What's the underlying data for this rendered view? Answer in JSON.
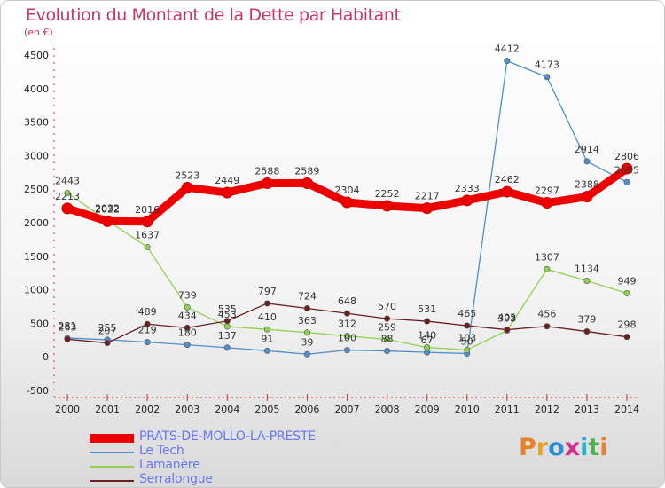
{
  "title": "Evolution du Montant de la Dette par Habitant",
  "unit_label": "(en €)",
  "logo": {
    "text": "Proxiti",
    "colors": [
      "#e8812b",
      "#e8a32b",
      "#2b8fd6",
      "#d62b8f",
      "#2bb0d6",
      "#4caf50",
      "#e8812b"
    ]
  },
  "chart_data": {
    "type": "line",
    "title": "Evolution du Montant de la Dette par Habitant",
    "ylabel": "(en €)",
    "xlabel": "",
    "x": [
      "2000",
      "2001",
      "2002",
      "2003",
      "2004",
      "2005",
      "2006",
      "2007",
      "2008",
      "2009",
      "2010",
      "2011",
      "2012",
      "2013",
      "2014"
    ],
    "ylim": [
      -500,
      4500
    ],
    "yticks": [
      "-500",
      "0",
      "500",
      "1000",
      "1500",
      "2000",
      "2500",
      "3000",
      "3500",
      "4000",
      "4500"
    ],
    "grid": false,
    "legend_position": "bottom-left",
    "series": [
      {
        "name": "PRATS-DE-MOLLO-LA-PRESTE",
        "color": "#ee0000",
        "values": [
          2213,
          2022,
          2016,
          2523,
          2449,
          2588,
          2589,
          2304,
          2252,
          2217,
          2333,
          2462,
          2297,
          2388,
          2806
        ],
        "labels": [
          "2213",
          "2022",
          "2016",
          "2523",
          "2449",
          "2588",
          "2589",
          "2304",
          "2252",
          "2217",
          "2333",
          "2462",
          "2297",
          "2388",
          "2806"
        ]
      },
      {
        "name": "Le Tech",
        "color": "#4d8fcc",
        "values": [
          281,
          255,
          219,
          180,
          137,
          91,
          39,
          100,
          88,
          67,
          50,
          4412,
          4173,
          2914,
          2605
        ],
        "labels": [
          "281",
          "255",
          "219",
          "180",
          "137",
          "91",
          "39",
          "100",
          "88",
          "67",
          "50",
          "4412",
          "4173",
          "2914",
          "2605"
        ]
      },
      {
        "name": "Lamanère",
        "color": "#8fd14f",
        "values": [
          2443,
          2032,
          1637,
          739,
          453,
          410,
          363,
          312,
          259,
          140,
          103,
          393,
          1307,
          1134,
          949
        ],
        "labels": [
          "2443",
          "2032",
          "1637",
          "739",
          "453",
          "410",
          "363",
          "312",
          "259",
          "140",
          "103",
          "393",
          "1307",
          "1134",
          "949"
        ]
      },
      {
        "name": "Serralongue",
        "color": "#6b2020",
        "values": [
          263,
          207,
          489,
          434,
          535,
          797,
          724,
          648,
          570,
          531,
          465,
          405,
          456,
          379,
          298
        ],
        "labels": [
          "263",
          "207",
          "489",
          "434",
          "535",
          "797",
          "724",
          "648",
          "570",
          "531",
          "465",
          "405",
          "456",
          "379",
          "298"
        ]
      }
    ]
  }
}
